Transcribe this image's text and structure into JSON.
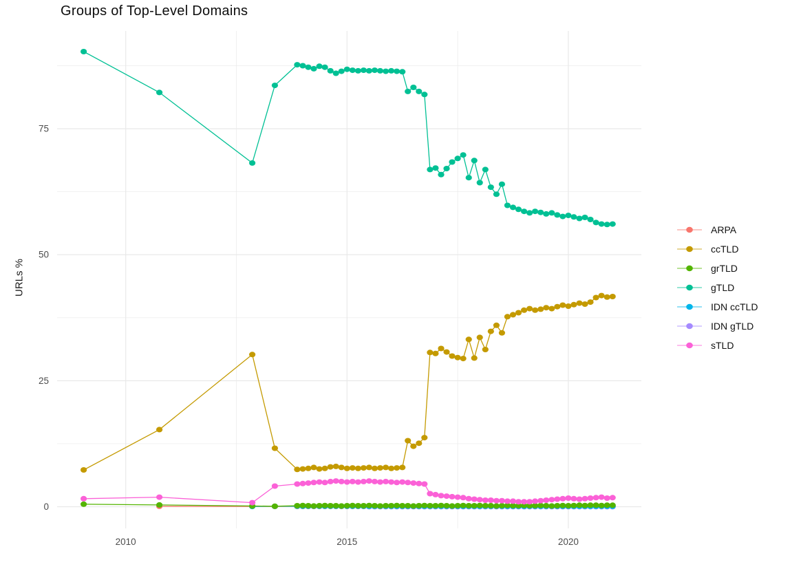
{
  "chart_data": {
    "type": "line",
    "title": "Groups of Top-Level Domains",
    "xlabel": "",
    "ylabel": "URLs %",
    "legend_position": "right",
    "grid": true,
    "background": "#ffffff",
    "gridline_color": "#e9e9e9",
    "axis_text_color": "#4d4d4d",
    "xlim": [
      2008.45,
      2021.65
    ],
    "ylim": [
      -4.3,
      94.4
    ],
    "x_ticks": [
      2010,
      2015,
      2020
    ],
    "x_minor": [
      2012.5,
      2017.5
    ],
    "y_ticks": [
      0,
      25,
      50,
      75
    ],
    "y_minor": [
      12.5,
      37.5,
      62.5,
      87.5
    ],
    "draw_order": [
      "ARPA",
      "IDN gTLD",
      "IDN ccTLD",
      "grTLD",
      "gTLD",
      "ccTLD",
      "sTLD"
    ],
    "x_dense": [
      2013.875,
      2014.0,
      2014.125,
      2014.25,
      2014.375,
      2014.5,
      2014.625,
      2014.75,
      2014.875,
      2015.0,
      2015.125,
      2015.25,
      2015.375,
      2015.5,
      2015.625,
      2015.75,
      2015.875,
      2016.0,
      2016.125,
      2016.25,
      2016.375,
      2016.5,
      2016.625,
      2016.75,
      2016.875,
      2017.0,
      2017.125,
      2017.25,
      2017.375,
      2017.5,
      2017.625,
      2017.75,
      2017.875,
      2018.0,
      2018.125,
      2018.25,
      2018.375,
      2018.5,
      2018.625,
      2018.75,
      2018.875,
      2019.0,
      2019.125,
      2019.25,
      2019.375,
      2019.5,
      2019.625,
      2019.75,
      2019.875,
      2020.0,
      2020.125,
      2020.25,
      2020.375,
      2020.5,
      2020.625,
      2020.75,
      2020.875,
      2021.0
    ],
    "series": [
      {
        "name": "ARPA",
        "color": "#F8766D",
        "sparse": [
          [
            2010.76,
            0.08
          ],
          [
            2012.86,
            0.05
          ],
          [
            2013.37,
            0.05
          ]
        ],
        "dense_fill": 0.05
      },
      {
        "name": "ccTLD",
        "color": "#C49A00",
        "sparse": [
          [
            2009.05,
            7.3
          ],
          [
            2010.76,
            15.3
          ],
          [
            2012.86,
            30.2
          ],
          [
            2013.37,
            11.6
          ]
        ],
        "dense_values": [
          7.4,
          7.5,
          7.6,
          7.8,
          7.5,
          7.6,
          7.9,
          8.0,
          7.8,
          7.6,
          7.7,
          7.6,
          7.7,
          7.8,
          7.6,
          7.7,
          7.8,
          7.6,
          7.7,
          7.8,
          13.1,
          12.0,
          12.6,
          13.7,
          30.6,
          30.4,
          31.4,
          30.7,
          29.9,
          29.6,
          29.4,
          33.2,
          29.5,
          33.6,
          31.2,
          34.8,
          36.0,
          34.5,
          37.7,
          38.1,
          38.5,
          39.0,
          39.3,
          39.0,
          39.2,
          39.5,
          39.3,
          39.7,
          40.0,
          39.8,
          40.1,
          40.4,
          40.2,
          40.6,
          41.5,
          41.9,
          41.6,
          41.7
        ]
      },
      {
        "name": "grTLD",
        "color": "#53B400",
        "sparse": [
          [
            2009.05,
            0.5
          ],
          [
            2010.76,
            0.35
          ],
          [
            2012.86,
            0.15
          ],
          [
            2013.37,
            0.1
          ]
        ],
        "dense_values": [
          0.2,
          0.25,
          0.2,
          0.15,
          0.2,
          0.25,
          0.2,
          0.2,
          0.15,
          0.2,
          0.25,
          0.2,
          0.2,
          0.25,
          0.2,
          0.15,
          0.2,
          0.2,
          0.25,
          0.2,
          0.2,
          0.15,
          0.2,
          0.25,
          0.2,
          0.2,
          0.25,
          0.2,
          0.15,
          0.2,
          0.25,
          0.2,
          0.2,
          0.25,
          0.2,
          0.2,
          0.15,
          0.2,
          0.25,
          0.2,
          0.2,
          0.25,
          0.2,
          0.2,
          0.25,
          0.2,
          0.15,
          0.2,
          0.25,
          0.2,
          0.25,
          0.3,
          0.25,
          0.3,
          0.3,
          0.25,
          0.3,
          0.3
        ]
      },
      {
        "name": "gTLD",
        "color": "#00C094",
        "sparse": [
          [
            2009.05,
            90.3
          ],
          [
            2010.76,
            82.2
          ],
          [
            2012.86,
            68.2
          ],
          [
            2013.37,
            83.6
          ]
        ],
        "dense_values": [
          87.7,
          87.5,
          87.2,
          86.9,
          87.4,
          87.2,
          86.5,
          86.0,
          86.4,
          86.8,
          86.6,
          86.5,
          86.6,
          86.5,
          86.6,
          86.5,
          86.4,
          86.5,
          86.4,
          86.3,
          82.4,
          83.2,
          82.4,
          81.8,
          66.9,
          67.2,
          65.9,
          67.1,
          68.4,
          69.1,
          69.8,
          65.3,
          68.7,
          64.3,
          66.9,
          63.4,
          62.0,
          64.0,
          59.8,
          59.4,
          59.0,
          58.6,
          58.3,
          58.6,
          58.4,
          58.1,
          58.3,
          57.9,
          57.6,
          57.8,
          57.5,
          57.2,
          57.4,
          57.0,
          56.4,
          56.1,
          56.0,
          56.1
        ]
      },
      {
        "name": "IDN ccTLD",
        "color": "#00B6EB",
        "sparse": [
          [
            2012.86,
            0.05
          ],
          [
            2013.37,
            0.08
          ]
        ],
        "dense_fill": 0.1
      },
      {
        "name": "IDN gTLD",
        "color": "#A58AFF",
        "sparse": [],
        "dense_fill": 0.02,
        "dense_from": 2015.5
      },
      {
        "name": "sTLD",
        "color": "#FB61D7",
        "sparse": [
          [
            2009.05,
            1.6
          ],
          [
            2010.76,
            1.9
          ],
          [
            2012.86,
            0.8
          ],
          [
            2013.37,
            4.1
          ]
        ],
        "dense_values": [
          4.5,
          4.6,
          4.7,
          4.8,
          4.9,
          4.8,
          5.0,
          5.1,
          5.0,
          4.9,
          5.0,
          4.9,
          5.0,
          5.1,
          5.0,
          4.9,
          5.0,
          4.9,
          4.8,
          4.9,
          4.8,
          4.7,
          4.6,
          4.5,
          2.6,
          2.4,
          2.2,
          2.1,
          2.0,
          1.9,
          1.8,
          1.6,
          1.5,
          1.4,
          1.3,
          1.3,
          1.2,
          1.2,
          1.1,
          1.1,
          1.0,
          1.0,
          1.0,
          1.1,
          1.2,
          1.3,
          1.4,
          1.5,
          1.6,
          1.7,
          1.6,
          1.5,
          1.6,
          1.7,
          1.8,
          1.9,
          1.7,
          1.8
        ]
      }
    ]
  }
}
